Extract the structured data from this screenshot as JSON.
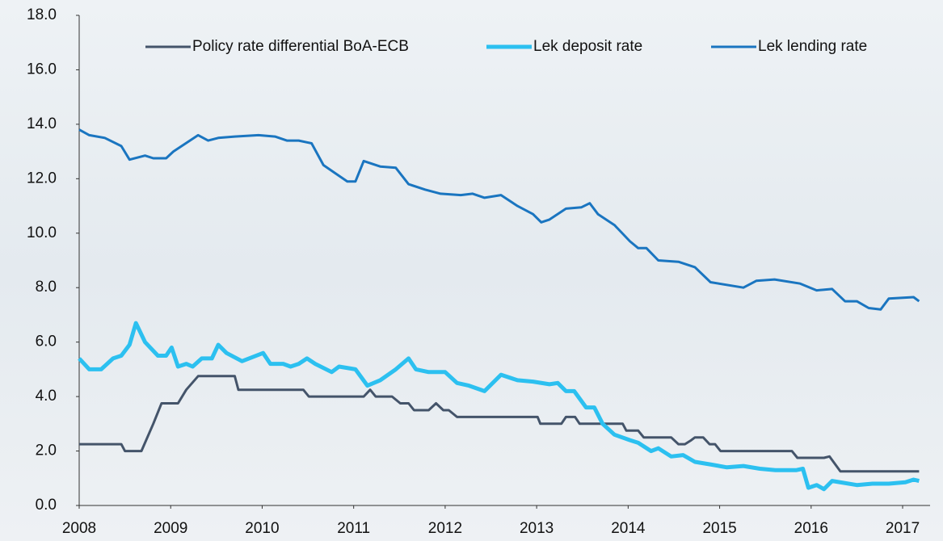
{
  "chart_data": {
    "type": "line",
    "xlim": [
      2008,
      2017.3
    ],
    "xticks": [
      2008,
      2009,
      2010,
      2011,
      2012,
      2013,
      2014,
      2015,
      2016,
      2017
    ],
    "ylim": [
      0,
      18
    ],
    "yticks": [
      {
        "value": 0,
        "label": "0.0"
      },
      {
        "value": 2,
        "label": "2.0"
      },
      {
        "value": 4,
        "label": "4.0"
      },
      {
        "value": 6,
        "label": "6.0"
      },
      {
        "value": 8,
        "label": "8.0"
      },
      {
        "value": 10,
        "label": "10.0"
      },
      {
        "value": 12,
        "label": "12.0"
      },
      {
        "value": 14,
        "label": "14.0"
      },
      {
        "value": 16,
        "label": "16.0"
      },
      {
        "value": 18,
        "label": "18.0"
      }
    ],
    "legend": "top",
    "series": [
      {
        "name": "Policy rate differential BoA-ECB",
        "color": "#44546a",
        "width": 3,
        "x": [
          2008.0,
          2008.46,
          2008.5,
          2008.68,
          2008.81,
          2008.9,
          2009.08,
          2009.17,
          2009.3,
          2009.7,
          2009.74,
          2010.45,
          2010.51,
          2011.11,
          2011.18,
          2011.24,
          2011.42,
          2011.51,
          2011.6,
          2011.66,
          2011.82,
          2011.9,
          2011.98,
          2012.04,
          2012.13,
          2013.01,
          2013.04,
          2013.27,
          2013.32,
          2013.42,
          2013.47,
          2013.94,
          2013.98,
          2014.11,
          2014.17,
          2014.47,
          2014.55,
          2014.62,
          2014.69,
          2014.73,
          2014.82,
          2014.89,
          2014.95,
          2015.01,
          2015.79,
          2015.85,
          2016.14,
          2016.2,
          2016.32,
          2017.18
        ],
        "values": [
          2.25,
          2.25,
          2.0,
          2.0,
          3.0,
          3.75,
          3.75,
          4.25,
          4.75,
          4.75,
          4.25,
          4.25,
          4.0,
          4.0,
          4.25,
          4.0,
          4.0,
          3.75,
          3.75,
          3.5,
          3.5,
          3.75,
          3.5,
          3.5,
          3.25,
          3.25,
          3.0,
          3.0,
          3.25,
          3.25,
          3.0,
          3.0,
          2.75,
          2.75,
          2.5,
          2.5,
          2.25,
          2.25,
          2.4,
          2.5,
          2.5,
          2.25,
          2.25,
          2.0,
          2.0,
          1.75,
          1.75,
          1.8,
          1.25,
          1.25
        ]
      },
      {
        "name": "Lek deposit rate",
        "color": "#2cc0f0",
        "width": 5,
        "x": [
          2008.0,
          2008.11,
          2008.24,
          2008.37,
          2008.46,
          2008.55,
          2008.62,
          2008.72,
          2008.86,
          2008.95,
          2009.01,
          2009.08,
          2009.17,
          2009.24,
          2009.34,
          2009.45,
          2009.52,
          2009.61,
          2009.78,
          2010.01,
          2010.09,
          2010.23,
          2010.31,
          2010.4,
          2010.49,
          2010.58,
          2010.76,
          2010.84,
          2011.02,
          2011.15,
          2011.29,
          2011.46,
          2011.6,
          2011.68,
          2011.82,
          2012.0,
          2012.13,
          2012.26,
          2012.43,
          2012.61,
          2012.79,
          2012.96,
          2013.14,
          2013.23,
          2013.32,
          2013.41,
          2013.54,
          2013.63,
          2013.72,
          2013.85,
          2014.02,
          2014.11,
          2014.25,
          2014.33,
          2014.47,
          2014.6,
          2014.73,
          2014.91,
          2015.08,
          2015.26,
          2015.44,
          2015.61,
          2015.84,
          2015.91,
          2015.97,
          2016.06,
          2016.14,
          2016.23,
          2016.5,
          2016.67,
          2016.85,
          2017.03,
          2017.12,
          2017.18
        ],
        "values": [
          5.4,
          5.0,
          5.0,
          5.4,
          5.5,
          5.9,
          6.7,
          6.0,
          5.5,
          5.5,
          5.8,
          5.1,
          5.2,
          5.1,
          5.4,
          5.4,
          5.9,
          5.6,
          5.3,
          5.6,
          5.2,
          5.2,
          5.1,
          5.2,
          5.4,
          5.2,
          4.9,
          5.1,
          5.0,
          4.4,
          4.6,
          5.0,
          5.4,
          5.0,
          4.9,
          4.9,
          4.5,
          4.4,
          4.2,
          4.8,
          4.6,
          4.55,
          4.45,
          4.5,
          4.2,
          4.2,
          3.6,
          3.6,
          3.0,
          2.6,
          2.4,
          2.3,
          2.0,
          2.1,
          1.8,
          1.85,
          1.6,
          1.5,
          1.4,
          1.45,
          1.35,
          1.3,
          1.3,
          1.35,
          0.65,
          0.75,
          0.6,
          0.9,
          0.75,
          0.8,
          0.8,
          0.85,
          0.95,
          0.9
        ]
      },
      {
        "name": "Lek lending rate",
        "color": "#1a75c0",
        "width": 3,
        "x": [
          2008.0,
          2008.11,
          2008.28,
          2008.46,
          2008.55,
          2008.72,
          2008.81,
          2008.95,
          2009.03,
          2009.21,
          2009.3,
          2009.41,
          2009.52,
          2009.7,
          2009.96,
          2010.14,
          2010.27,
          2010.4,
          2010.54,
          2010.67,
          2010.8,
          2010.93,
          2011.02,
          2011.11,
          2011.29,
          2011.46,
          2011.6,
          2011.78,
          2011.95,
          2012.17,
          2012.3,
          2012.43,
          2012.61,
          2012.79,
          2012.96,
          2013.05,
          2013.14,
          2013.32,
          2013.49,
          2013.58,
          2013.67,
          2013.85,
          2014.02,
          2014.11,
          2014.2,
          2014.33,
          2014.55,
          2014.73,
          2014.9,
          2015.26,
          2015.4,
          2015.6,
          2015.88,
          2016.06,
          2016.23,
          2016.37,
          2016.5,
          2016.63,
          2016.76,
          2016.85,
          2017.12,
          2017.18
        ],
        "values": [
          13.8,
          13.6,
          13.5,
          13.2,
          12.7,
          12.85,
          12.75,
          12.75,
          13.0,
          13.4,
          13.6,
          13.4,
          13.5,
          13.55,
          13.6,
          13.55,
          13.4,
          13.4,
          13.3,
          12.5,
          12.2,
          11.9,
          11.9,
          12.65,
          12.45,
          12.4,
          11.8,
          11.6,
          11.45,
          11.4,
          11.45,
          11.3,
          11.4,
          11.0,
          10.7,
          10.4,
          10.5,
          10.9,
          10.95,
          11.1,
          10.7,
          10.3,
          9.7,
          9.45,
          9.45,
          9.0,
          8.95,
          8.75,
          8.2,
          8.0,
          8.25,
          8.3,
          8.15,
          7.9,
          7.95,
          7.5,
          7.5,
          7.25,
          7.2,
          7.6,
          7.65,
          7.5
        ]
      }
    ]
  }
}
